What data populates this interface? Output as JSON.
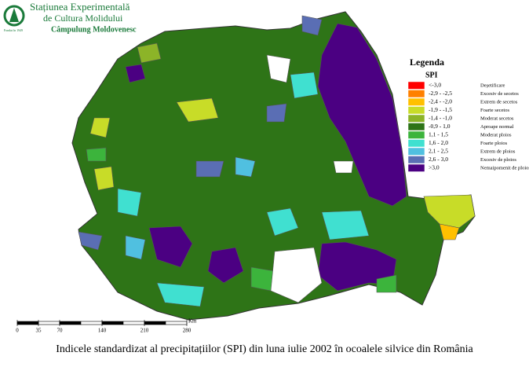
{
  "header": {
    "line1": "Stațiunea Experimentală",
    "line2": "de Cultura Molidului",
    "line3": "Câmpulung Moldovenesc",
    "logo_text": "Fondat în 1949"
  },
  "legend": {
    "title": "Legenda",
    "subtitle": "SPI",
    "items": [
      {
        "range": "<-3,0",
        "label": "Deșetificare",
        "color": "#ff0000"
      },
      {
        "range": "-2,9 - -2,5",
        "label": "Excesiv de secetos",
        "color": "#ff8000"
      },
      {
        "range": "-2,4 - -2,0",
        "label": "Extrem de secetos",
        "color": "#ffc000"
      },
      {
        "range": "-1,9 - -1,5",
        "label": "Foarte secetos",
        "color": "#c8dc28"
      },
      {
        "range": "-1,4 - -1,0",
        "label": "Moderat secetos",
        "color": "#8cb428"
      },
      {
        "range": "-0,9 - 1,0",
        "label": "Aproape normal",
        "color": "#2e7417"
      },
      {
        "range": "1,1 - 1,5",
        "label": "Moderat ploios",
        "color": "#3cb43c"
      },
      {
        "range": "1,6 - 2,0",
        "label": "Foarte ploios",
        "color": "#40e0d0"
      },
      {
        "range": "2,1 - 2,5",
        "label": "Extrem de ploios",
        "color": "#50c0e0"
      },
      {
        "range": "2,6 - 3,0",
        "label": "Excesiv de ploios",
        "color": "#5a6eb4"
      },
      {
        "range": ">3,0",
        "label": "Nemaipomenit de ploios",
        "color": "#4b0082"
      }
    ]
  },
  "scale_bar": {
    "ticks": [
      0,
      35,
      70,
      140,
      210,
      280
    ],
    "unit": "Km"
  },
  "caption": "Indicele standardizat al precipitațiilor (SPI) din luna iulie 2002 în ocoalele silvice din România"
}
